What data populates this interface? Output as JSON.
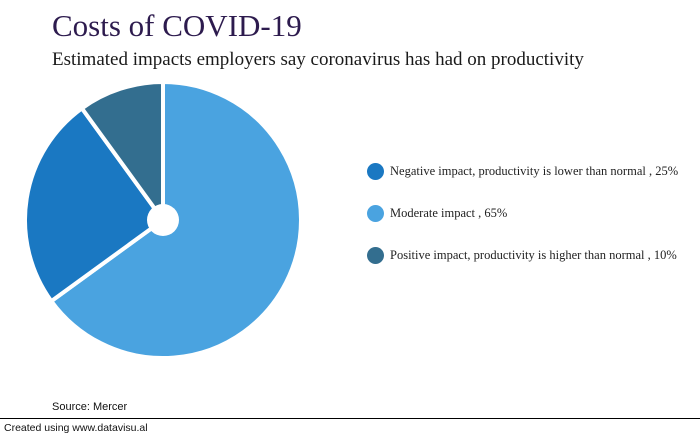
{
  "header": {
    "title": "Costs of COVID-19",
    "subtitle": "Estimated impacts employers say coronavirus has had on productivity"
  },
  "chart_data": {
    "type": "pie",
    "title": "Costs of COVID-19",
    "subtitle": "Estimated impacts employers say coronavirus has had on productivity",
    "slices": [
      {
        "label": "Negative impact, productivity is lower than normal",
        "value": 25,
        "color": "#1a78c2"
      },
      {
        "label": "Moderate impact",
        "value": 65,
        "color": "#4aa3e0"
      },
      {
        "label": "Positive impact, productivity is higher than normal",
        "value": 10,
        "color": "#336e8f"
      }
    ],
    "legend_placement": "right"
  },
  "legend": {
    "items": [
      {
        "text": "Negative impact, productivity is lower than normal , 25%",
        "color": "#1a78c2"
      },
      {
        "text": "Moderate impact , 65%",
        "color": "#4aa3e0"
      },
      {
        "text": "Positive impact, productivity is higher than normal , 10%",
        "color": "#336e8f"
      }
    ]
  },
  "source": "Source: Mercer",
  "footer": "Created using www.datavisu.al"
}
